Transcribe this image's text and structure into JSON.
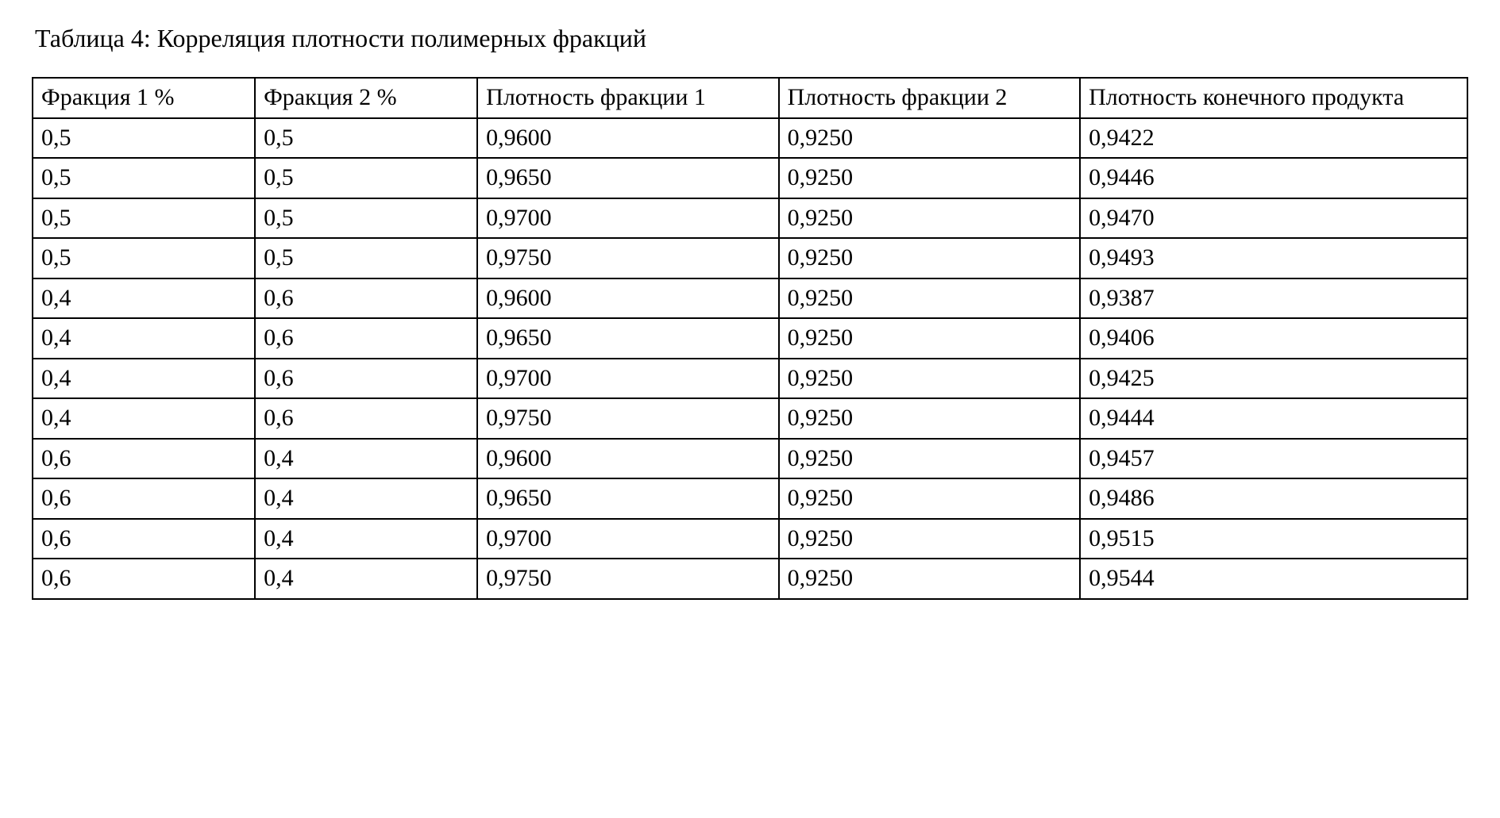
{
  "title": "Таблица 4: Корреляция плотности полимерных фракций",
  "table": {
    "columns": [
      "Фракция 1 %",
      "Фракция 2 %",
      "Плотность фракции 1",
      "Плотность фракции 2",
      "Плотность конечного продукта"
    ],
    "col_widths_pct": [
      15.5,
      15.5,
      21,
      21,
      27
    ],
    "rows": [
      [
        "0,5",
        "0,5",
        "0,9600",
        "0,9250",
        "0,9422"
      ],
      [
        "0,5",
        "0,5",
        "0,9650",
        "0,9250",
        "0,9446"
      ],
      [
        "0,5",
        "0,5",
        "0,9700",
        "0,9250",
        "0,9470"
      ],
      [
        "0,5",
        "0,5",
        "0,9750",
        "0,9250",
        "0,9493"
      ],
      [
        "0,4",
        "0,6",
        "0,9600",
        "0,9250",
        "0,9387"
      ],
      [
        "0,4",
        "0,6",
        "0,9650",
        "0,9250",
        "0,9406"
      ],
      [
        "0,4",
        "0,6",
        "0,9700",
        "0,9250",
        "0,9425"
      ],
      [
        "0,4",
        "0,6",
        "0,9750",
        "0,9250",
        "0,9444"
      ],
      [
        "0,6",
        "0,4",
        "0,9600",
        "0,9250",
        "0,9457"
      ],
      [
        "0,6",
        "0,4",
        "0,9650",
        "0,9250",
        "0,9486"
      ],
      [
        "0,6",
        "0,4",
        "0,9700",
        "0,9250",
        "0,9515"
      ],
      [
        "0,6",
        "0,4",
        "0,9750",
        "0,9250",
        "0,9544"
      ]
    ],
    "border_color": "#000000",
    "background_color": "#ffffff",
    "text_color": "#000000",
    "font_family": "Times New Roman",
    "title_fontsize_pt": 24,
    "cell_fontsize_pt": 22
  }
}
